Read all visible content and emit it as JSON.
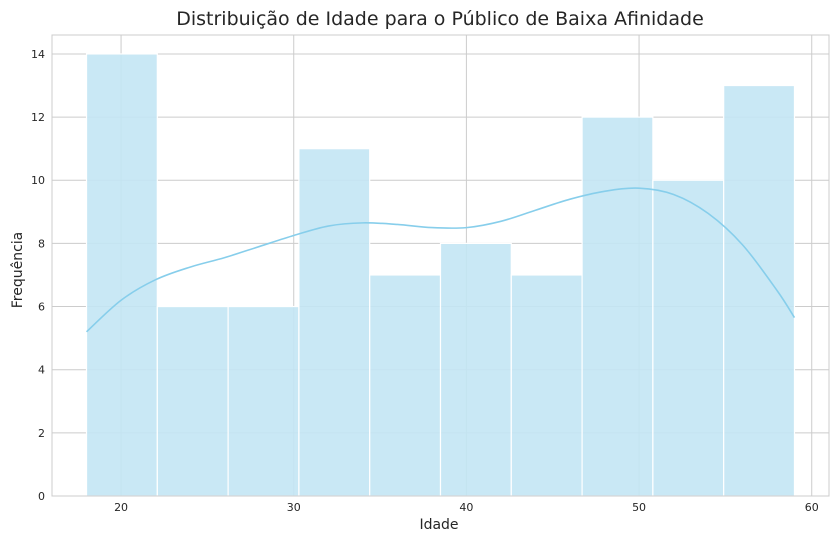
{
  "chart_data": {
    "type": "bar",
    "subtype": "histogram",
    "title": "Distribuição de Idade para o Público de Baixa Afinidade",
    "xlabel": "Idade",
    "ylabel": "Frequência",
    "xlim": [
      16,
      61
    ],
    "ylim": [
      0,
      14.6
    ],
    "xticks": [
      20,
      30,
      40,
      50,
      60
    ],
    "yticks": [
      0,
      2,
      4,
      6,
      8,
      10,
      12,
      14
    ],
    "grid": true,
    "bin_edges": [
      18,
      22.1,
      26.2,
      30.3,
      34.4,
      38.5,
      42.6,
      46.7,
      50.8,
      54.9,
      59
    ],
    "values": [
      14,
      6,
      6,
      11,
      7,
      8,
      7,
      12,
      10,
      13
    ],
    "kde": {
      "x": [
        18,
        20,
        22,
        24,
        26,
        28,
        30,
        32,
        34,
        36,
        38,
        40,
        42,
        44,
        46,
        48,
        50,
        52,
        54,
        56,
        58,
        59
      ],
      "y": [
        5.2,
        6.2,
        6.85,
        7.25,
        7.55,
        7.9,
        8.25,
        8.55,
        8.65,
        8.6,
        8.5,
        8.5,
        8.7,
        9.05,
        9.4,
        9.65,
        9.75,
        9.55,
        8.95,
        7.95,
        6.5,
        5.65
      ]
    },
    "colors": {
      "bar_fill": "#c3e6f4",
      "bar_edge": "#ffffff",
      "kde_line": "#87ceeb",
      "grid": "#cccccc",
      "text": "#262626"
    }
  }
}
